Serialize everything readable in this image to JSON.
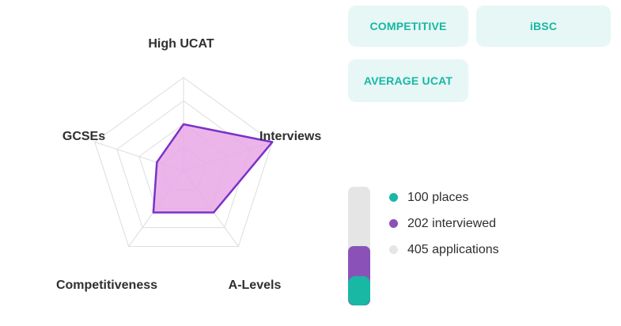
{
  "radar": {
    "axes": [
      "High UCAT",
      "Interviews",
      "A-Levels",
      "Competitiveness",
      "GCSEs"
    ],
    "levels": 4,
    "scores": [
      0.5,
      1.0,
      0.55,
      0.55,
      0.3
    ],
    "grid_color": "#dddddd",
    "fill_color": "#e9a8e6",
    "stroke_color": "#7a32c9"
  },
  "tags": {
    "competitive": "COMPETITIVE",
    "ibsc": "iBSC",
    "average_ucat": "AVERAGE UCAT"
  },
  "stats": {
    "places": 100,
    "interviewed": 202,
    "applications": 405
  },
  "legend": [
    {
      "label": "100 places",
      "color": "#18b8a4"
    },
    {
      "label": "202 interviewed",
      "color": "#8a52b8"
    },
    {
      "label": "405 applications",
      "color": "#e5e5e5"
    }
  ],
  "colors": {
    "tag_bg": "#e6f7f5",
    "tag_text": "#17b7a3",
    "places": "#18b8a4",
    "interviewed": "#8a52b8",
    "applications": "#e5e5e5"
  }
}
